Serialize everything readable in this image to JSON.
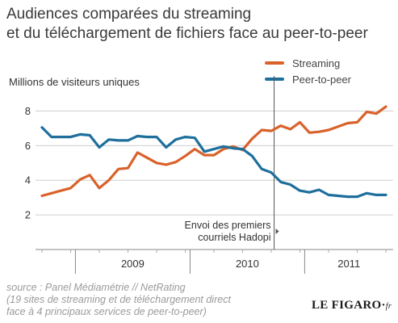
{
  "header": {
    "title_line1": "Audiences comparées du streaming",
    "title_line2": "et du téléchargement de fichiers face au peer-to-peer"
  },
  "footer": {
    "source_line1": "source : Panel Médiamétrie // NetRating",
    "source_line2": "(19 sites de streaming et de téléchargement direct",
    "source_line3": "face à 4 principaux services de peer-to-peer)",
    "logo_text": "LE FIGARO·",
    "logo_suffix": "fr"
  },
  "chart_data": {
    "type": "line",
    "title": "Audiences comparées du streaming et du téléchargement de fichiers face au peer-to-peer",
    "ylabel": "Millions de visiteurs uniques",
    "xlabel": "",
    "ylim": [
      0,
      9
    ],
    "yticks": [
      2,
      4,
      6,
      8
    ],
    "year_labels": [
      "2009",
      "2010",
      "2011"
    ],
    "grid": "horizontal",
    "legend_position": "top-right",
    "x": [
      "2008-09",
      "2008-10",
      "2008-11",
      "2008-12",
      "2009-01",
      "2009-02",
      "2009-03",
      "2009-04",
      "2009-05",
      "2009-06",
      "2009-07",
      "2009-08",
      "2009-09",
      "2009-10",
      "2009-11",
      "2009-12",
      "2010-01",
      "2010-02",
      "2010-03",
      "2010-04",
      "2010-05",
      "2010-06",
      "2010-07",
      "2010-08",
      "2010-09",
      "2010-10",
      "2010-11",
      "2010-12",
      "2011-01",
      "2011-02",
      "2011-03",
      "2011-04",
      "2011-05",
      "2011-06",
      "2011-07",
      "2011-08",
      "2011-09"
    ],
    "series": [
      {
        "name": "Streaming",
        "color": "#d9622b",
        "values": [
          3.1,
          3.25,
          3.4,
          3.55,
          4.05,
          4.3,
          3.55,
          4.0,
          4.65,
          4.7,
          5.6,
          5.3,
          5.0,
          4.9,
          5.05,
          5.4,
          5.8,
          5.45,
          5.45,
          5.8,
          5.95,
          5.75,
          6.4,
          6.9,
          6.85,
          7.15,
          6.95,
          7.35,
          6.75,
          6.8,
          6.9,
          7.1,
          7.3,
          7.35,
          7.95,
          7.85,
          8.25
        ]
      },
      {
        "name": "Peer-to-peer",
        "color": "#1f6f9c",
        "values": [
          7.05,
          6.5,
          6.5,
          6.5,
          6.65,
          6.6,
          5.9,
          6.35,
          6.3,
          6.3,
          6.55,
          6.5,
          6.5,
          5.9,
          6.35,
          6.5,
          6.45,
          5.65,
          5.8,
          5.95,
          5.85,
          5.8,
          5.4,
          4.65,
          4.45,
          3.9,
          3.75,
          3.4,
          3.3,
          3.45,
          3.15,
          3.1,
          3.05,
          3.05,
          3.25,
          3.15,
          3.15
        ]
      }
    ],
    "annotation": {
      "line1": "Envoi des premiers",
      "line2": "courriels Hadopi",
      "x": "2010-09"
    }
  }
}
